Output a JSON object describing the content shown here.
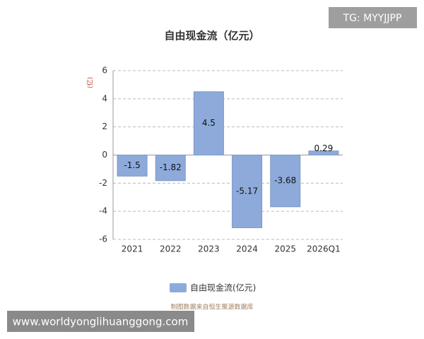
{
  "chart_data": {
    "type": "bar",
    "title": "自由现金流（亿元）",
    "y_label": "(亿)",
    "categories": [
      "2021",
      "2022",
      "2023",
      "2024",
      "2025",
      "2026Q1"
    ],
    "series": [
      {
        "name": "自由现金流(亿元)",
        "color": "#8eaadb",
        "values": [
          -1.5,
          -1.82,
          4.5,
          -5.17,
          -3.68,
          0.29
        ]
      }
    ],
    "ylim": [
      -6,
      6
    ],
    "yticks": [
      -6,
      -4,
      -2,
      0,
      2,
      4,
      6
    ],
    "grid": true,
    "source": "制图数据来自恒生聚源数据库"
  },
  "watermarks": [
    "TG: MYYJJPP",
    "www.worldyonglihuanggong.com"
  ]
}
